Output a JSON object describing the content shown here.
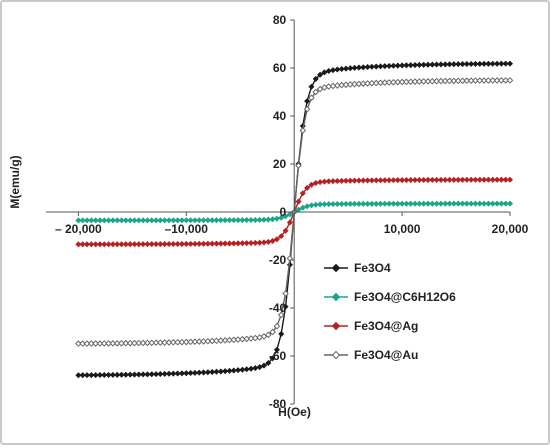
{
  "chart_data": {
    "type": "scatter",
    "title": "",
    "xlabel": "H(Oe)",
    "ylabel": "M(emu/g)",
    "xlim": [
      -23000,
      20000
    ],
    "ylim": [
      -80,
      80
    ],
    "x_ticks": [
      {
        "value": -20000,
        "label": "– 20,000"
      },
      {
        "value": -10000,
        "label": "–10,000"
      },
      {
        "value": 10000,
        "label": "10,000"
      },
      {
        "value": 20000,
        "label": "20,000"
      }
    ],
    "y_ticks": [
      {
        "value": -80,
        "label": "-80"
      },
      {
        "value": -60,
        "label": "-60"
      },
      {
        "value": -40,
        "label": "-40"
      },
      {
        "value": -20,
        "label": "-20"
      },
      {
        "value": 0,
        "label": "0"
      },
      {
        "value": 20,
        "label": "20"
      },
      {
        "value": 40,
        "label": "40"
      },
      {
        "value": 60,
        "label": "60"
      },
      {
        "value": 80,
        "label": "80"
      }
    ],
    "grid": false,
    "legend_position": "bottom-right",
    "series": [
      {
        "name": "Fe3O4",
        "color": "#1a1a1a",
        "marker": "filled-diamond",
        "ms": 62,
        "hk": 1100
      },
      {
        "name": "Fe3O4@C6H12O6",
        "color": "#1aa58c",
        "marker": "filled-diamond",
        "ms": 3.5,
        "hk": 1300
      },
      {
        "name": "Fe3O4@Ag",
        "color": "#b82020",
        "marker": "filled-diamond",
        "ms": 13.5,
        "hk": 1100
      },
      {
        "name": "Fe3O4@Au",
        "color": "#666666",
        "marker": "open-diamond",
        "ms": 55,
        "hk": 1000
      }
    ]
  }
}
